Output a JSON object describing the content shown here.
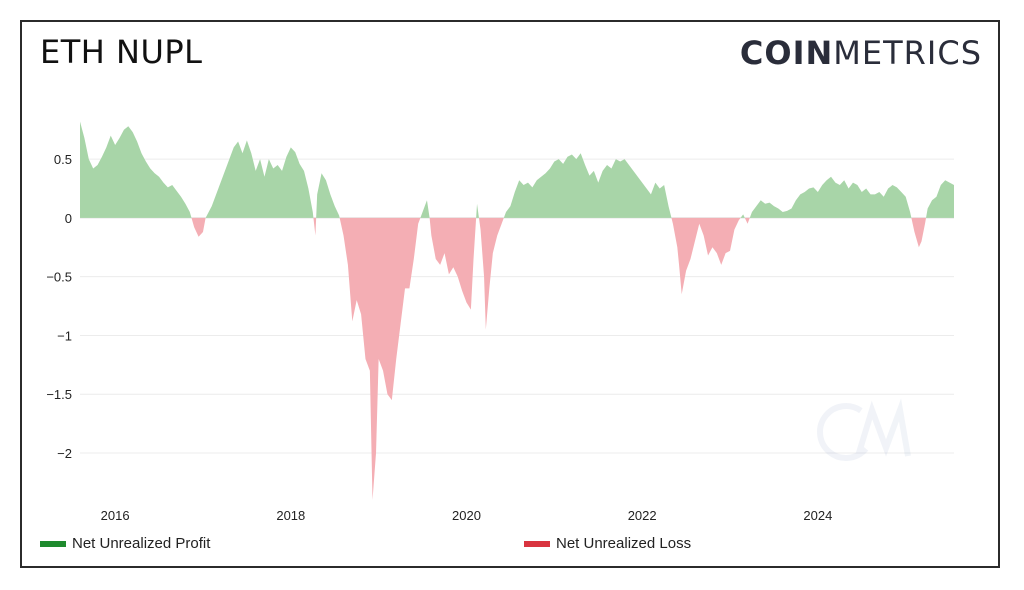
{
  "title": "ETH NUPL",
  "logo": {
    "part1": "COIN",
    "part2": "METRICS"
  },
  "colors": {
    "profit_fill": "#a8d5a8",
    "loss_fill": "#f4aeb4",
    "legend_profit": "#1e8a2e",
    "legend_loss": "#d9343f",
    "grid": "#ececec",
    "zero": "#dddddd"
  },
  "legend": {
    "profit_label": "Net Unrealized Profit",
    "loss_label": "Net Unrealized Loss"
  },
  "chart_data": {
    "type": "area",
    "title": "ETH NUPL",
    "xlabel": "",
    "ylabel": "",
    "xlim": [
      2015.6,
      2025.55
    ],
    "ylim": [
      -2.4,
      0.85
    ],
    "y_ticks": [
      0.5,
      0,
      -0.5,
      -1,
      -1.5,
      -2
    ],
    "y_tick_labels": [
      "0.5",
      "0",
      "−0.5",
      "−1",
      "−1.5",
      "−2"
    ],
    "x_ticks": [
      2016,
      2018,
      2020,
      2022,
      2024
    ],
    "x_tick_labels": [
      "2016",
      "2018",
      "2020",
      "2022",
      "2024"
    ],
    "grid": true,
    "series": [
      {
        "name": "NUPL",
        "points": [
          [
            2015.6,
            0.82
          ],
          [
            2015.65,
            0.68
          ],
          [
            2015.7,
            0.5
          ],
          [
            2015.75,
            0.42
          ],
          [
            2015.8,
            0.45
          ],
          [
            2015.85,
            0.52
          ],
          [
            2015.9,
            0.6
          ],
          [
            2015.95,
            0.7
          ],
          [
            2016.0,
            0.62
          ],
          [
            2016.05,
            0.68
          ],
          [
            2016.1,
            0.75
          ],
          [
            2016.15,
            0.78
          ],
          [
            2016.2,
            0.73
          ],
          [
            2016.25,
            0.65
          ],
          [
            2016.3,
            0.55
          ],
          [
            2016.35,
            0.48
          ],
          [
            2016.4,
            0.42
          ],
          [
            2016.45,
            0.38
          ],
          [
            2016.5,
            0.35
          ],
          [
            2016.55,
            0.3
          ],
          [
            2016.6,
            0.26
          ],
          [
            2016.65,
            0.28
          ],
          [
            2016.7,
            0.23
          ],
          [
            2016.75,
            0.18
          ],
          [
            2016.8,
            0.12
          ],
          [
            2016.85,
            0.05
          ],
          [
            2016.9,
            -0.08
          ],
          [
            2016.95,
            -0.16
          ],
          [
            2017.0,
            -0.12
          ],
          [
            2017.03,
            0.0
          ],
          [
            2017.1,
            0.1
          ],
          [
            2017.2,
            0.3
          ],
          [
            2017.3,
            0.5
          ],
          [
            2017.35,
            0.6
          ],
          [
            2017.4,
            0.65
          ],
          [
            2017.45,
            0.55
          ],
          [
            2017.5,
            0.66
          ],
          [
            2017.55,
            0.55
          ],
          [
            2017.6,
            0.4
          ],
          [
            2017.65,
            0.5
          ],
          [
            2017.7,
            0.35
          ],
          [
            2017.75,
            0.5
          ],
          [
            2017.8,
            0.42
          ],
          [
            2017.85,
            0.45
          ],
          [
            2017.9,
            0.4
          ],
          [
            2017.95,
            0.52
          ],
          [
            2018.0,
            0.6
          ],
          [
            2018.05,
            0.56
          ],
          [
            2018.1,
            0.46
          ],
          [
            2018.15,
            0.4
          ],
          [
            2018.2,
            0.25
          ],
          [
            2018.25,
            0.05
          ],
          [
            2018.28,
            -0.15
          ],
          [
            2018.3,
            0.2
          ],
          [
            2018.35,
            0.38
          ],
          [
            2018.4,
            0.32
          ],
          [
            2018.45,
            0.2
          ],
          [
            2018.5,
            0.1
          ],
          [
            2018.55,
            0.02
          ],
          [
            2018.6,
            -0.15
          ],
          [
            2018.65,
            -0.4
          ],
          [
            2018.7,
            -0.88
          ],
          [
            2018.75,
            -0.7
          ],
          [
            2018.8,
            -0.82
          ],
          [
            2018.85,
            -1.2
          ],
          [
            2018.9,
            -1.3
          ],
          [
            2018.93,
            -2.4
          ],
          [
            2018.97,
            -2.0
          ],
          [
            2019.0,
            -1.2
          ],
          [
            2019.05,
            -1.3
          ],
          [
            2019.1,
            -1.5
          ],
          [
            2019.15,
            -1.55
          ],
          [
            2019.2,
            -1.2
          ],
          [
            2019.25,
            -0.9
          ],
          [
            2019.3,
            -0.6
          ],
          [
            2019.35,
            -0.6
          ],
          [
            2019.4,
            -0.35
          ],
          [
            2019.45,
            -0.05
          ],
          [
            2019.5,
            0.05
          ],
          [
            2019.55,
            0.15
          ],
          [
            2019.58,
            0.0
          ],
          [
            2019.6,
            -0.15
          ],
          [
            2019.65,
            -0.35
          ],
          [
            2019.7,
            -0.4
          ],
          [
            2019.75,
            -0.3
          ],
          [
            2019.8,
            -0.48
          ],
          [
            2019.85,
            -0.42
          ],
          [
            2019.9,
            -0.5
          ],
          [
            2019.95,
            -0.62
          ],
          [
            2020.0,
            -0.72
          ],
          [
            2020.05,
            -0.78
          ],
          [
            2020.08,
            -0.35
          ],
          [
            2020.12,
            0.12
          ],
          [
            2020.16,
            -0.1
          ],
          [
            2020.2,
            -0.5
          ],
          [
            2020.22,
            -0.95
          ],
          [
            2020.26,
            -0.6
          ],
          [
            2020.3,
            -0.3
          ],
          [
            2020.35,
            -0.15
          ],
          [
            2020.4,
            -0.05
          ],
          [
            2020.45,
            0.05
          ],
          [
            2020.5,
            0.1
          ],
          [
            2020.55,
            0.22
          ],
          [
            2020.6,
            0.32
          ],
          [
            2020.65,
            0.28
          ],
          [
            2020.7,
            0.3
          ],
          [
            2020.75,
            0.26
          ],
          [
            2020.8,
            0.32
          ],
          [
            2020.85,
            0.35
          ],
          [
            2020.9,
            0.38
          ],
          [
            2020.95,
            0.42
          ],
          [
            2021.0,
            0.48
          ],
          [
            2021.05,
            0.5
          ],
          [
            2021.1,
            0.46
          ],
          [
            2021.15,
            0.52
          ],
          [
            2021.2,
            0.54
          ],
          [
            2021.25,
            0.5
          ],
          [
            2021.3,
            0.55
          ],
          [
            2021.35,
            0.45
          ],
          [
            2021.4,
            0.36
          ],
          [
            2021.45,
            0.4
          ],
          [
            2021.5,
            0.3
          ],
          [
            2021.55,
            0.4
          ],
          [
            2021.6,
            0.45
          ],
          [
            2021.65,
            0.42
          ],
          [
            2021.7,
            0.5
          ],
          [
            2021.75,
            0.48
          ],
          [
            2021.8,
            0.5
          ],
          [
            2021.85,
            0.45
          ],
          [
            2021.9,
            0.4
          ],
          [
            2021.95,
            0.35
          ],
          [
            2022.0,
            0.3
          ],
          [
            2022.05,
            0.25
          ],
          [
            2022.1,
            0.2
          ],
          [
            2022.15,
            0.3
          ],
          [
            2022.2,
            0.25
          ],
          [
            2022.25,
            0.28
          ],
          [
            2022.3,
            0.1
          ],
          [
            2022.35,
            -0.05
          ],
          [
            2022.4,
            -0.25
          ],
          [
            2022.42,
            -0.4
          ],
          [
            2022.45,
            -0.65
          ],
          [
            2022.5,
            -0.45
          ],
          [
            2022.55,
            -0.35
          ],
          [
            2022.6,
            -0.2
          ],
          [
            2022.65,
            -0.05
          ],
          [
            2022.7,
            -0.15
          ],
          [
            2022.75,
            -0.32
          ],
          [
            2022.8,
            -0.25
          ],
          [
            2022.85,
            -0.3
          ],
          [
            2022.9,
            -0.4
          ],
          [
            2022.95,
            -0.3
          ],
          [
            2023.0,
            -0.28
          ],
          [
            2023.05,
            -0.1
          ],
          [
            2023.1,
            -0.02
          ],
          [
            2023.15,
            0.03
          ],
          [
            2023.2,
            -0.05
          ],
          [
            2023.25,
            0.05
          ],
          [
            2023.3,
            0.1
          ],
          [
            2023.35,
            0.15
          ],
          [
            2023.4,
            0.12
          ],
          [
            2023.45,
            0.13
          ],
          [
            2023.5,
            0.1
          ],
          [
            2023.55,
            0.08
          ],
          [
            2023.6,
            0.05
          ],
          [
            2023.65,
            0.06
          ],
          [
            2023.7,
            0.08
          ],
          [
            2023.75,
            0.15
          ],
          [
            2023.8,
            0.2
          ],
          [
            2023.85,
            0.22
          ],
          [
            2023.9,
            0.25
          ],
          [
            2023.95,
            0.26
          ],
          [
            2024.0,
            0.22
          ],
          [
            2024.05,
            0.28
          ],
          [
            2024.1,
            0.32
          ],
          [
            2024.15,
            0.35
          ],
          [
            2024.2,
            0.3
          ],
          [
            2024.25,
            0.28
          ],
          [
            2024.3,
            0.32
          ],
          [
            2024.35,
            0.25
          ],
          [
            2024.4,
            0.3
          ],
          [
            2024.45,
            0.28
          ],
          [
            2024.5,
            0.22
          ],
          [
            2024.55,
            0.25
          ],
          [
            2024.6,
            0.2
          ],
          [
            2024.65,
            0.2
          ],
          [
            2024.7,
            0.22
          ],
          [
            2024.75,
            0.18
          ],
          [
            2024.8,
            0.25
          ],
          [
            2024.85,
            0.28
          ],
          [
            2024.9,
            0.26
          ],
          [
            2024.95,
            0.22
          ],
          [
            2025.0,
            0.18
          ],
          [
            2025.05,
            0.05
          ],
          [
            2025.1,
            -0.12
          ],
          [
            2025.15,
            -0.25
          ],
          [
            2025.18,
            -0.2
          ],
          [
            2025.22,
            -0.05
          ],
          [
            2025.25,
            0.08
          ],
          [
            2025.3,
            0.15
          ],
          [
            2025.35,
            0.18
          ],
          [
            2025.4,
            0.28
          ],
          [
            2025.45,
            0.32
          ],
          [
            2025.5,
            0.3
          ],
          [
            2025.55,
            0.28
          ]
        ]
      }
    ]
  }
}
